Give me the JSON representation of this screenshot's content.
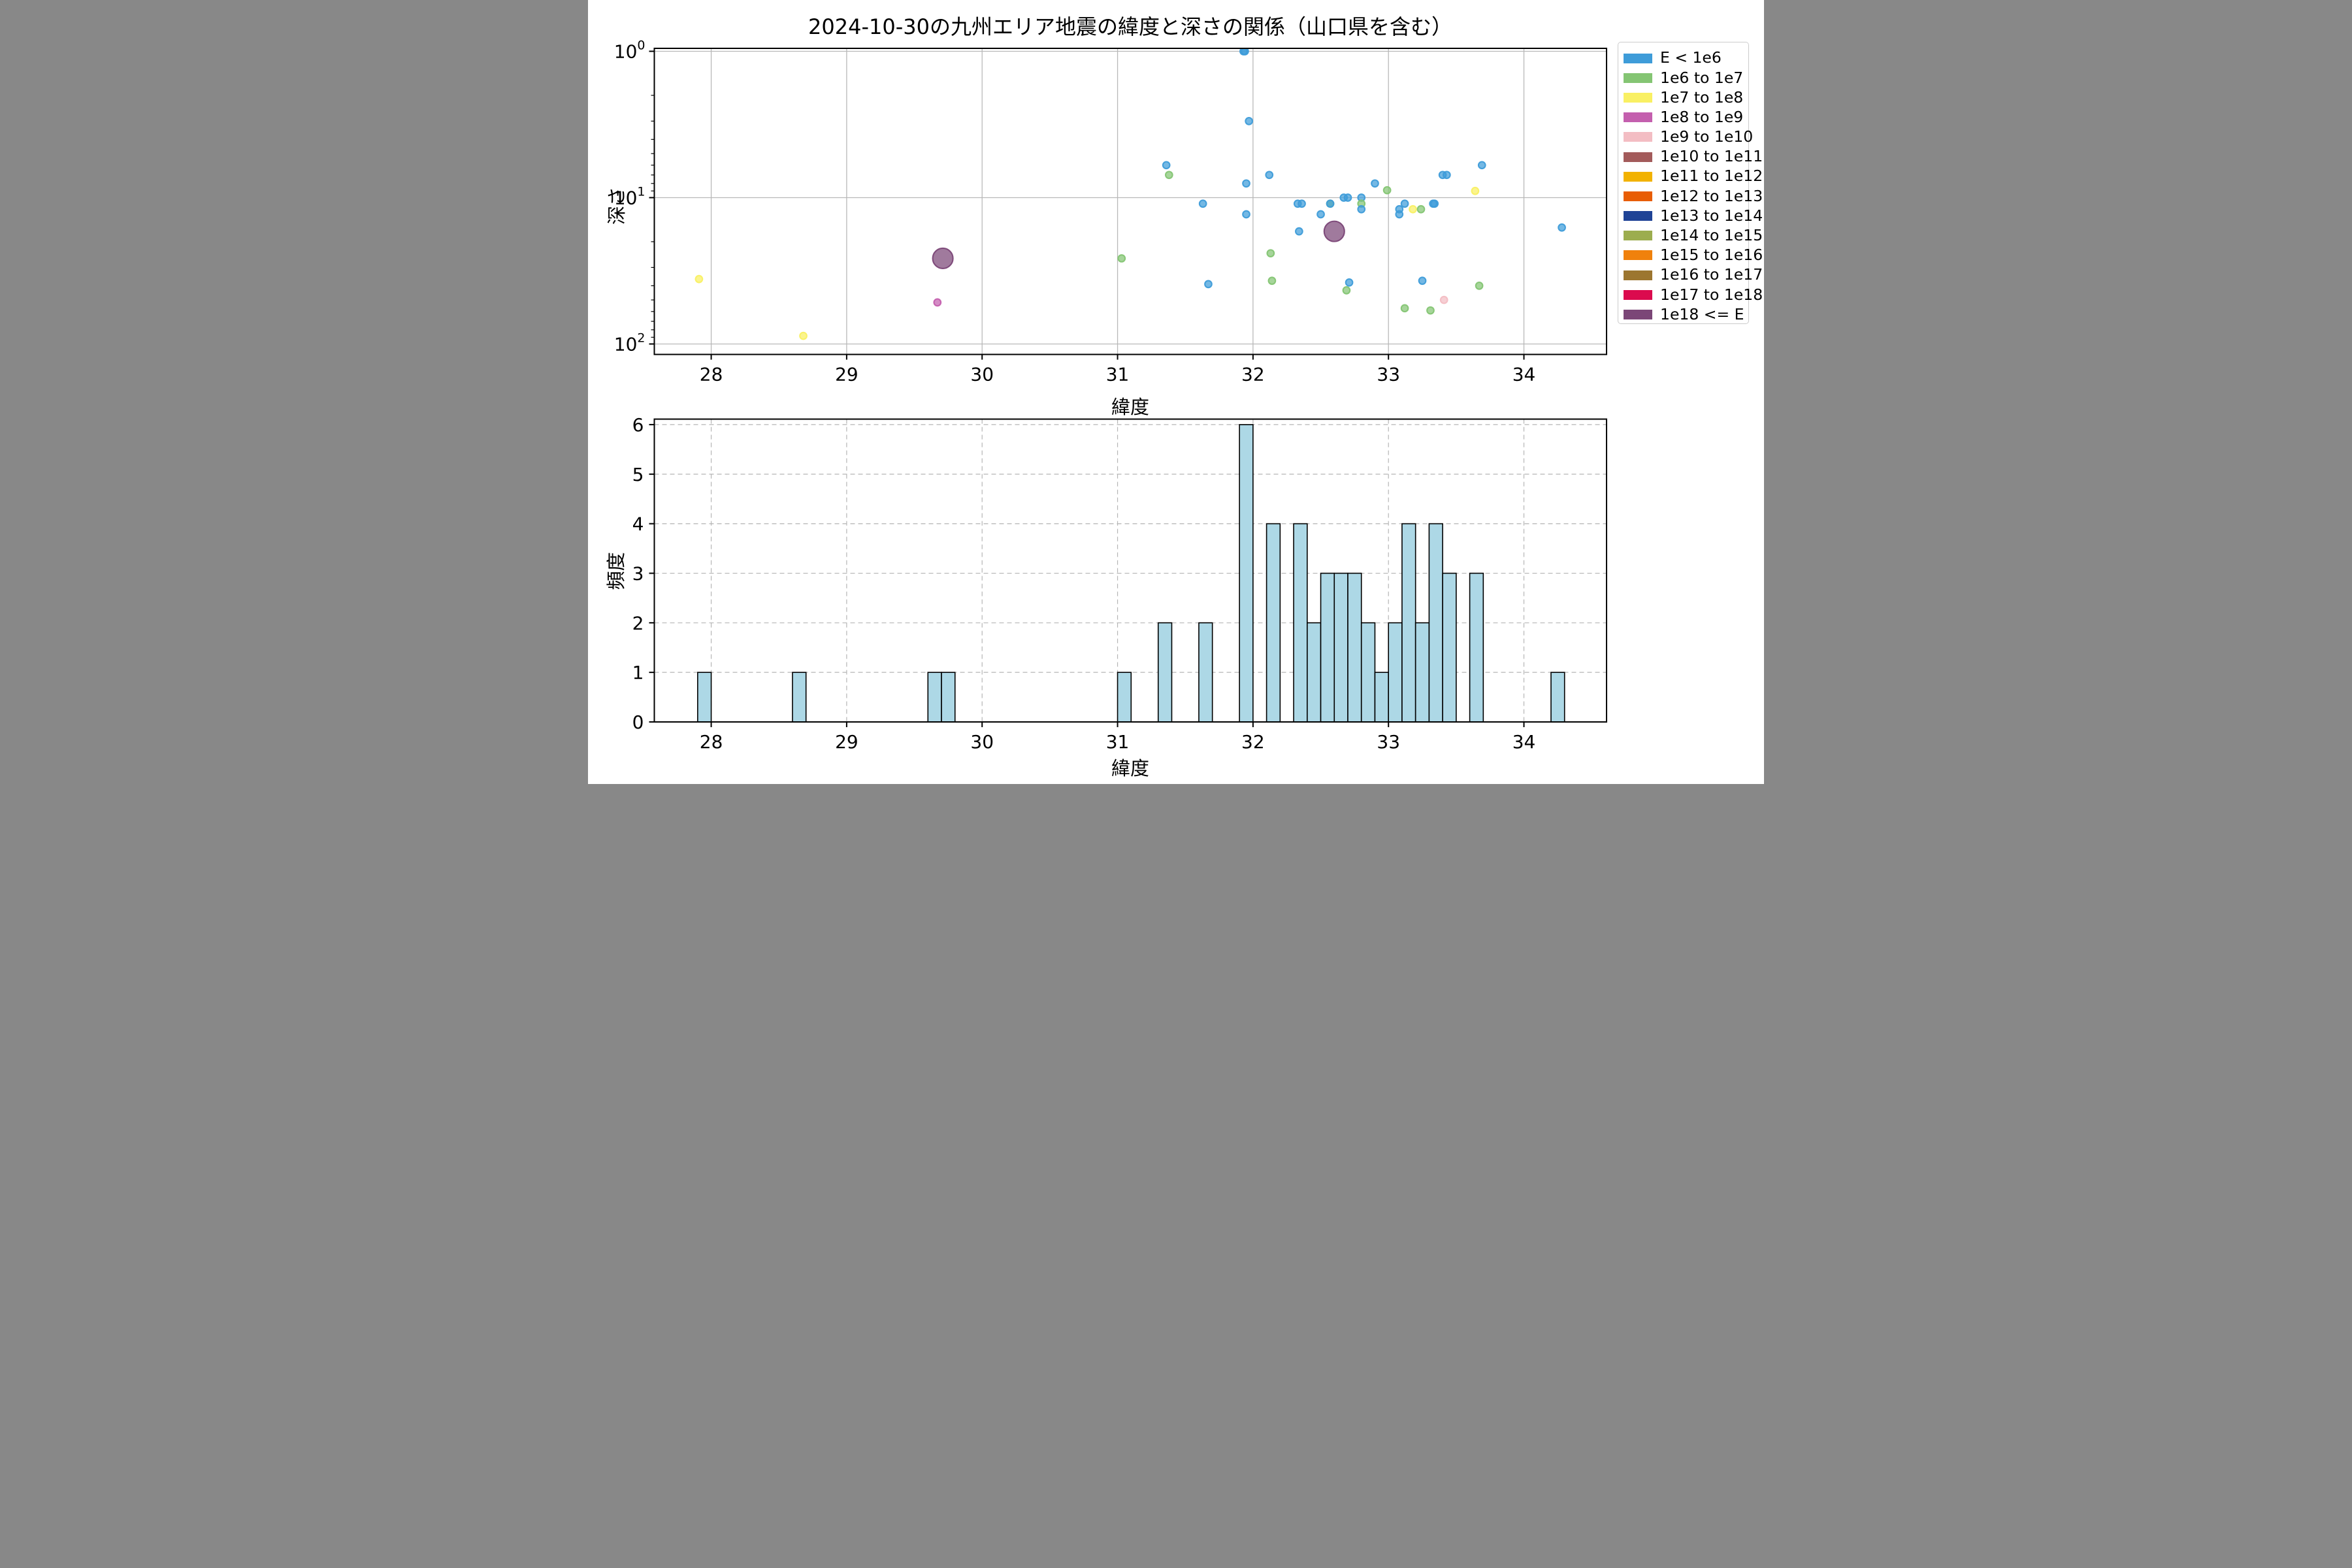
{
  "title": "2024-10-30の九州エリア地震の緯度と深さの関係（山口県を含む）",
  "legend": {
    "items": [
      {
        "label": "E < 1e6",
        "color": "#3E9CD9"
      },
      {
        "label": "1e6 to 1e7",
        "color": "#84C573"
      },
      {
        "label": "1e7 to 1e8",
        "color": "#F9F063"
      },
      {
        "label": "1e8 to 1e9",
        "color": "#C45FAE"
      },
      {
        "label": "1e9 to 1e10",
        "color": "#F3BDC3"
      },
      {
        "label": "1e10 to 1e11",
        "color": "#A35B5B"
      },
      {
        "label": "1e11 to 1e12",
        "color": "#F2B200"
      },
      {
        "label": "1e12 to 1e13",
        "color": "#E85D04"
      },
      {
        "label": "1e13 to 1e14",
        "color": "#1F4396"
      },
      {
        "label": "1e14 to 1e15",
        "color": "#9CAD4E"
      },
      {
        "label": "1e15 to 1e16",
        "color": "#F0810C"
      },
      {
        "label": "1e16 to 1e17",
        "color": "#9C7630"
      },
      {
        "label": "1e17 to 1e18",
        "color": "#DB0B4E"
      },
      {
        "label": "1e18 <= E",
        "color": "#7B4677"
      }
    ]
  },
  "chart_data": [
    {
      "type": "scatter",
      "title": "2024-10-30の九州エリア地震の緯度と深さの関係（山口県を含む）",
      "xlabel": "緯度",
      "ylabel": "深さ",
      "xlim": [
        27.58,
        34.61
      ],
      "xticks": [
        28,
        29,
        30,
        31,
        32,
        33,
        34
      ],
      "y_scale": "log",
      "y_direction": "increasing downward (10^0 at top, 10^2 at bottom)",
      "ylim_top_to_bottom": [
        0.95,
        118
      ],
      "yticks": [
        {
          "base": "10",
          "exp": "0",
          "value": 1
        },
        {
          "base": "10",
          "exp": "1",
          "value": 10
        },
        {
          "base": "10",
          "exp": "2",
          "value": 100
        }
      ],
      "y_minor_ticks": [
        2,
        3,
        4,
        5,
        6,
        7,
        8,
        9,
        20,
        30,
        40,
        50,
        60,
        70,
        80,
        90
      ],
      "grid": "solid gray at integer latitudes and decades",
      "marker_alpha": 0.72,
      "points": [
        {
          "lat": 27.91,
          "depth": 36,
          "class": "1e7 to 1e8",
          "size": "normal"
        },
        {
          "lat": 28.68,
          "depth": 88,
          "class": "1e7 to 1e8",
          "size": "normal"
        },
        {
          "lat": 29.67,
          "depth": 52,
          "class": "1e8 to 1e9",
          "size": "normal"
        },
        {
          "lat": 29.71,
          "depth": 26,
          "class": "1e18 <= E",
          "size": "large"
        },
        {
          "lat": 31.03,
          "depth": 26,
          "class": "1e6 to 1e7",
          "size": "normal"
        },
        {
          "lat": 31.36,
          "depth": 6,
          "class": "E < 1e6",
          "size": "normal"
        },
        {
          "lat": 31.38,
          "depth": 7,
          "class": "1e6 to 1e7",
          "size": "normal"
        },
        {
          "lat": 31.63,
          "depth": 11,
          "class": "E < 1e6",
          "size": "normal"
        },
        {
          "lat": 31.67,
          "depth": 39,
          "class": "E < 1e6",
          "size": "normal"
        },
        {
          "lat": 31.93,
          "depth": 1.0,
          "class": "E < 1e6",
          "size": "normal"
        },
        {
          "lat": 31.94,
          "depth": 1.0,
          "class": "E < 1e6",
          "size": "normal"
        },
        {
          "lat": 31.95,
          "depth": 8,
          "class": "E < 1e6",
          "size": "normal"
        },
        {
          "lat": 31.95,
          "depth": 13,
          "class": "E < 1e6",
          "size": "normal"
        },
        {
          "lat": 31.97,
          "depth": 3.0,
          "class": "E < 1e6",
          "size": "normal"
        },
        {
          "lat": 32.12,
          "depth": 7,
          "class": "E < 1e6",
          "size": "normal"
        },
        {
          "lat": 32.13,
          "depth": 24,
          "class": "1e6 to 1e7",
          "size": "normal"
        },
        {
          "lat": 32.14,
          "depth": 37,
          "class": "1e6 to 1e7",
          "size": "normal"
        },
        {
          "lat": 32.33,
          "depth": 11,
          "class": "E < 1e6",
          "size": "normal"
        },
        {
          "lat": 32.36,
          "depth": 11,
          "class": "E < 1e6",
          "size": "normal"
        },
        {
          "lat": 32.34,
          "depth": 17,
          "class": "E < 1e6",
          "size": "normal"
        },
        {
          "lat": 32.5,
          "depth": 13,
          "class": "E < 1e6",
          "size": "normal"
        },
        {
          "lat": 32.57,
          "depth": 11,
          "class": "1e6 to 1e7",
          "size": "normal"
        },
        {
          "lat": 32.57,
          "depth": 11,
          "class": "E < 1e6",
          "size": "normal"
        },
        {
          "lat": 32.6,
          "depth": 17,
          "class": "1e18 <= E",
          "size": "large"
        },
        {
          "lat": 32.67,
          "depth": 10,
          "class": "E < 1e6",
          "size": "normal"
        },
        {
          "lat": 32.7,
          "depth": 10,
          "class": "E < 1e6",
          "size": "normal"
        },
        {
          "lat": 32.69,
          "depth": 43,
          "class": "1e6 to 1e7",
          "size": "normal"
        },
        {
          "lat": 32.71,
          "depth": 38,
          "class": "E < 1e6",
          "size": "normal"
        },
        {
          "lat": 32.8,
          "depth": 10,
          "class": "E < 1e6",
          "size": "normal"
        },
        {
          "lat": 32.8,
          "depth": 11,
          "class": "1e6 to 1e7",
          "size": "normal"
        },
        {
          "lat": 32.8,
          "depth": 12,
          "class": "E < 1e6",
          "size": "normal"
        },
        {
          "lat": 32.9,
          "depth": 8,
          "class": "E < 1e6",
          "size": "normal"
        },
        {
          "lat": 32.99,
          "depth": 8.9,
          "class": "1e6 to 1e7",
          "size": "normal"
        },
        {
          "lat": 33.08,
          "depth": 12,
          "class": "E < 1e6",
          "size": "normal"
        },
        {
          "lat": 33.08,
          "depth": 13,
          "class": "E < 1e6",
          "size": "normal"
        },
        {
          "lat": 33.12,
          "depth": 11,
          "class": "E < 1e6",
          "size": "normal"
        },
        {
          "lat": 33.12,
          "depth": 57,
          "class": "1e6 to 1e7",
          "size": "normal"
        },
        {
          "lat": 33.18,
          "depth": 12,
          "class": "1e7 to 1e8",
          "size": "normal"
        },
        {
          "lat": 33.24,
          "depth": 12,
          "class": "1e6 to 1e7",
          "size": "normal"
        },
        {
          "lat": 33.25,
          "depth": 37,
          "class": "E < 1e6",
          "size": "normal"
        },
        {
          "lat": 33.31,
          "depth": 59,
          "class": "1e6 to 1e7",
          "size": "normal"
        },
        {
          "lat": 33.33,
          "depth": 11,
          "class": "E < 1e6",
          "size": "normal"
        },
        {
          "lat": 33.34,
          "depth": 11,
          "class": "E < 1e6",
          "size": "normal"
        },
        {
          "lat": 33.4,
          "depth": 7,
          "class": "E < 1e6",
          "size": "normal"
        },
        {
          "lat": 33.43,
          "depth": 7,
          "class": "E < 1e6",
          "size": "normal"
        },
        {
          "lat": 33.41,
          "depth": 50,
          "class": "1e9 to 1e10",
          "size": "normal"
        },
        {
          "lat": 33.64,
          "depth": 9,
          "class": "1e7 to 1e8",
          "size": "normal"
        },
        {
          "lat": 33.67,
          "depth": 40,
          "class": "1e6 to 1e7",
          "size": "normal"
        },
        {
          "lat": 33.69,
          "depth": 6,
          "class": "E < 1e6",
          "size": "normal"
        },
        {
          "lat": 34.28,
          "depth": 16,
          "class": "E < 1e6",
          "size": "normal"
        }
      ]
    },
    {
      "type": "bar",
      "xlabel": "緯度",
      "ylabel": "頻度",
      "xlim": [
        27.58,
        34.61
      ],
      "xticks": [
        28,
        29,
        30,
        31,
        32,
        33,
        34
      ],
      "yticks": [
        0,
        1,
        2,
        3,
        4,
        5,
        6
      ],
      "ylim": [
        0,
        6.11
      ],
      "bin_width": 0.1,
      "bar_fill": "#ADD8E6",
      "bar_edge": "#000000",
      "grid": "dashed gray",
      "bins": [
        {
          "start": 27.9,
          "count": 1
        },
        {
          "start": 28.6,
          "count": 1
        },
        {
          "start": 29.6,
          "count": 1
        },
        {
          "start": 29.7,
          "count": 1
        },
        {
          "start": 31.0,
          "count": 1
        },
        {
          "start": 31.3,
          "count": 2
        },
        {
          "start": 31.6,
          "count": 2
        },
        {
          "start": 31.9,
          "count": 6
        },
        {
          "start": 32.1,
          "count": 4
        },
        {
          "start": 32.3,
          "count": 4
        },
        {
          "start": 32.4,
          "count": 2
        },
        {
          "start": 32.5,
          "count": 3
        },
        {
          "start": 32.6,
          "count": 3
        },
        {
          "start": 32.7,
          "count": 3
        },
        {
          "start": 32.8,
          "count": 2
        },
        {
          "start": 32.9,
          "count": 1
        },
        {
          "start": 33.0,
          "count": 2
        },
        {
          "start": 33.1,
          "count": 4
        },
        {
          "start": 33.2,
          "count": 2
        },
        {
          "start": 33.3,
          "count": 4
        },
        {
          "start": 33.4,
          "count": 3
        },
        {
          "start": 33.6,
          "count": 3
        },
        {
          "start": 34.2,
          "count": 1
        }
      ]
    }
  ]
}
